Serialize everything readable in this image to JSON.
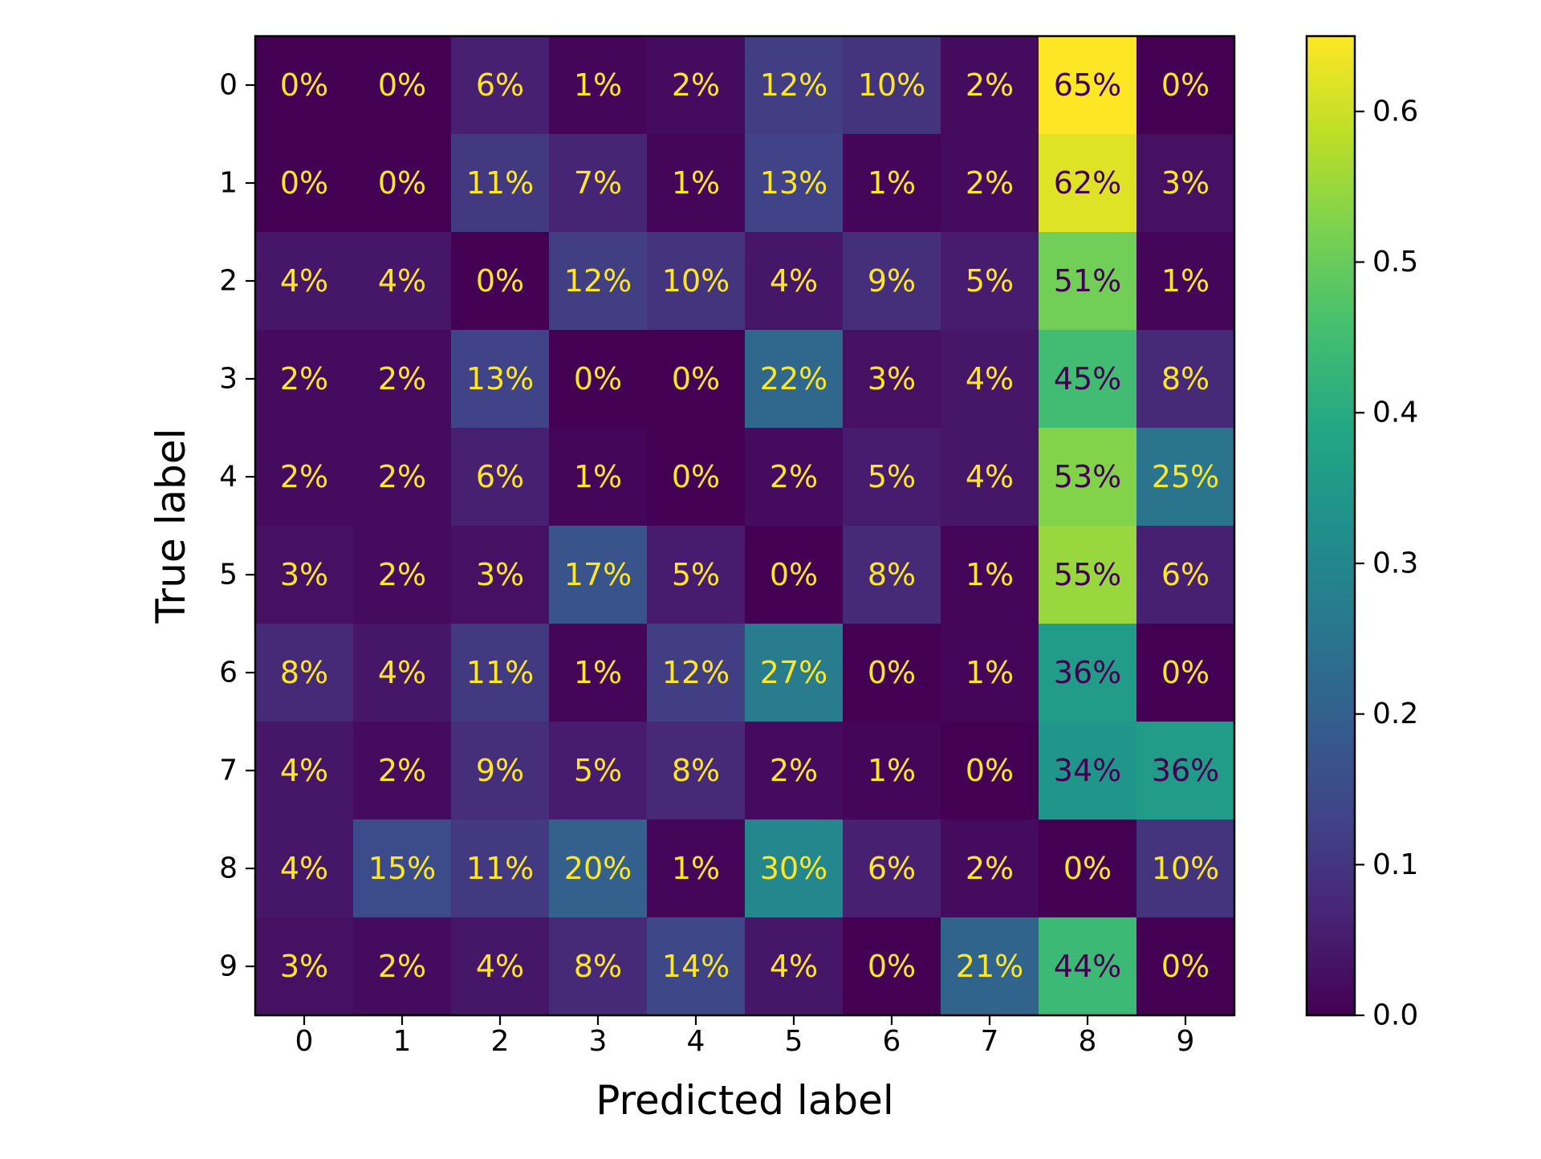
{
  "chart_data": {
    "type": "heatmap",
    "title": "",
    "xlabel": "Predicted label",
    "ylabel": "True label",
    "x_categories": [
      "0",
      "1",
      "2",
      "3",
      "4",
      "5",
      "6",
      "7",
      "8",
      "9"
    ],
    "y_categories": [
      "0",
      "1",
      "2",
      "3",
      "4",
      "5",
      "6",
      "7",
      "8",
      "9"
    ],
    "values": [
      [
        0.0,
        0.0,
        0.06,
        0.01,
        0.02,
        0.12,
        0.1,
        0.02,
        0.65,
        0.0
      ],
      [
        0.0,
        0.0,
        0.11,
        0.07,
        0.01,
        0.13,
        0.01,
        0.02,
        0.62,
        0.03
      ],
      [
        0.04,
        0.04,
        0.0,
        0.12,
        0.1,
        0.04,
        0.09,
        0.05,
        0.51,
        0.01
      ],
      [
        0.02,
        0.02,
        0.13,
        0.0,
        0.0,
        0.22,
        0.03,
        0.04,
        0.45,
        0.08
      ],
      [
        0.02,
        0.02,
        0.06,
        0.01,
        0.0,
        0.02,
        0.05,
        0.04,
        0.53,
        0.25
      ],
      [
        0.03,
        0.02,
        0.03,
        0.17,
        0.05,
        0.0,
        0.08,
        0.01,
        0.55,
        0.06
      ],
      [
        0.08,
        0.04,
        0.11,
        0.01,
        0.12,
        0.27,
        0.0,
        0.01,
        0.36,
        0.0
      ],
      [
        0.04,
        0.02,
        0.09,
        0.05,
        0.08,
        0.02,
        0.01,
        0.0,
        0.34,
        0.36
      ],
      [
        0.04,
        0.15,
        0.11,
        0.2,
        0.01,
        0.3,
        0.06,
        0.02,
        0.0,
        0.1
      ],
      [
        0.03,
        0.02,
        0.04,
        0.08,
        0.14,
        0.04,
        0.0,
        0.21,
        0.44,
        0.0
      ]
    ],
    "cell_labels": [
      [
        "0%",
        "0%",
        "6%",
        "1%",
        "2%",
        "12%",
        "10%",
        "2%",
        "65%",
        "0%"
      ],
      [
        "0%",
        "0%",
        "11%",
        "7%",
        "1%",
        "13%",
        "1%",
        "2%",
        "62%",
        "3%"
      ],
      [
        "4%",
        "4%",
        "0%",
        "12%",
        "10%",
        "4%",
        "9%",
        "5%",
        "51%",
        "1%"
      ],
      [
        "2%",
        "2%",
        "13%",
        "0%",
        "0%",
        "22%",
        "3%",
        "4%",
        "45%",
        "8%"
      ],
      [
        "2%",
        "2%",
        "6%",
        "1%",
        "0%",
        "2%",
        "5%",
        "4%",
        "53%",
        "25%"
      ],
      [
        "3%",
        "2%",
        "3%",
        "17%",
        "5%",
        "0%",
        "8%",
        "1%",
        "55%",
        "6%"
      ],
      [
        "8%",
        "4%",
        "11%",
        "1%",
        "12%",
        "27%",
        "0%",
        "1%",
        "36%",
        "0%"
      ],
      [
        "4%",
        "2%",
        "9%",
        "5%",
        "8%",
        "2%",
        "1%",
        "0%",
        "34%",
        "36%"
      ],
      [
        "4%",
        "15%",
        "11%",
        "20%",
        "1%",
        "30%",
        "6%",
        "2%",
        "0%",
        "10%"
      ],
      [
        "3%",
        "2%",
        "4%",
        "8%",
        "14%",
        "4%",
        "0%",
        "21%",
        "44%",
        "0%"
      ]
    ],
    "colormap": "viridis",
    "colorbar": {
      "range": [
        0.0,
        0.65
      ],
      "ticks": [
        0.0,
        0.1,
        0.2,
        0.3,
        0.4,
        0.5,
        0.6
      ],
      "tick_labels": [
        "0.0",
        "0.1",
        "0.2",
        "0.3",
        "0.4",
        "0.5",
        "0.6"
      ]
    },
    "text_colors": {
      "light": "#fde725",
      "dark": "#440154"
    }
  }
}
